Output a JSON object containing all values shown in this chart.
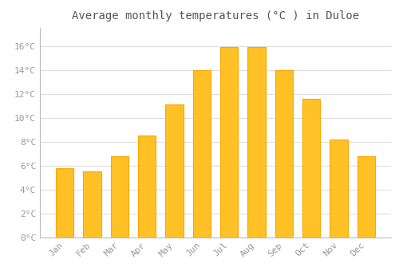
{
  "title": "Average monthly temperatures (°C ) in Duloe",
  "months": [
    "Jan",
    "Feb",
    "Mar",
    "Apr",
    "May",
    "Jun",
    "Jul",
    "Aug",
    "Sep",
    "Oct",
    "Nov",
    "Dec"
  ],
  "values": [
    5.8,
    5.5,
    6.8,
    8.5,
    11.1,
    14.0,
    15.9,
    15.9,
    14.0,
    11.6,
    8.2,
    6.8
  ],
  "bar_color": "#FFC125",
  "bar_edge_color": "#FFA500",
  "background_color": "#ffffff",
  "plot_bg_color": "#ffffff",
  "grid_color": "#dddddd",
  "text_color": "#999999",
  "title_color": "#555555",
  "ylim": [
    0,
    17.5
  ],
  "yticks": [
    0,
    2,
    4,
    6,
    8,
    10,
    12,
    14,
    16
  ],
  "ylabel_suffix": "°C",
  "title_fontsize": 10,
  "tick_fontsize": 8,
  "bar_width": 0.65
}
